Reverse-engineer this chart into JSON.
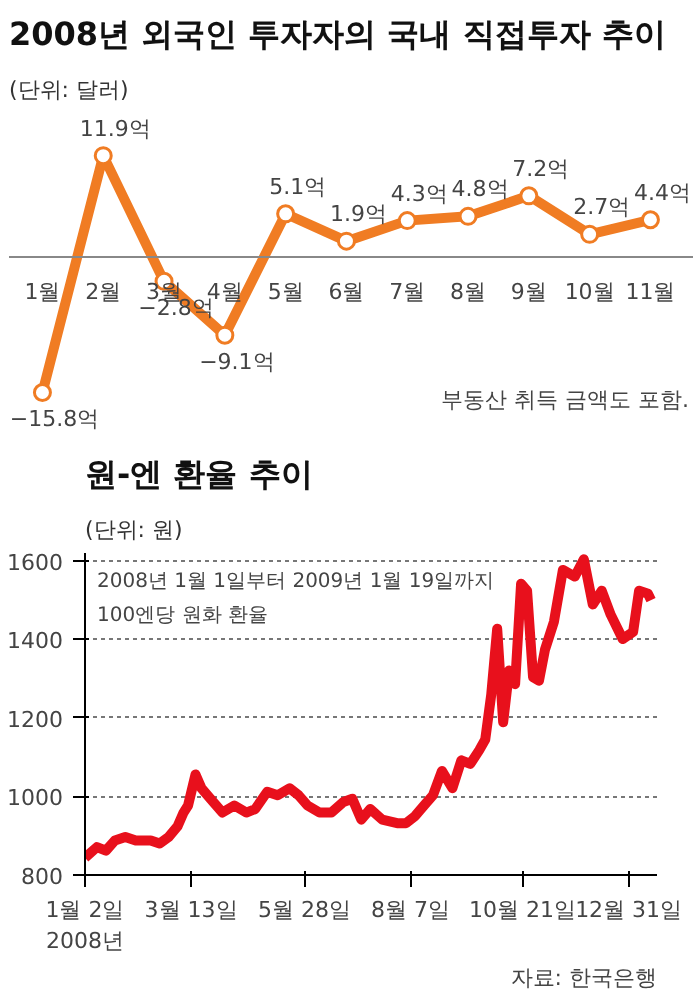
{
  "chart_data": [
    {
      "type": "line",
      "title": "2008년 외국인 투자자의 국내 직접투자 추이",
      "subtitle": "(단위: 달러)",
      "categories": [
        "1월",
        "2월",
        "3월",
        "4월",
        "5월",
        "6월",
        "7월",
        "8월",
        "9월",
        "10월",
        "11월"
      ],
      "values": [
        -15.8,
        11.9,
        -2.8,
        -9.1,
        5.1,
        1.9,
        4.3,
        4.8,
        7.2,
        2.7,
        4.4
      ],
      "value_labels": [
        "−15.8억",
        "11.9억",
        "−2.8억",
        "−9.1억",
        "5.1억",
        "1.9억",
        "4.3억",
        "4.8억",
        "7.2억",
        "2.7억",
        "4.4억"
      ],
      "color": "#f07c23",
      "marker": "circle",
      "line_style": "solid",
      "tick_labels": "x",
      "grid": false,
      "annotations": [
        "부동산 취득 금액도 포함."
      ]
    },
    {
      "type": "line",
      "title": "원-엔 환율 추이",
      "subtitle": "(단위: 원)",
      "color": "#e8101c",
      "line_style": "solid",
      "grid": "y",
      "x": [
        "2008-01-02",
        "2008-01-10",
        "2008-01-16",
        "2008-01-22",
        "2008-01-29",
        "2008-02-05",
        "2008-02-15",
        "2008-02-21",
        "2008-02-27",
        "2008-03-04",
        "2008-03-08",
        "2008-03-11",
        "2008-03-16",
        "2008-03-20",
        "2008-03-26",
        "2008-04-03",
        "2008-04-11",
        "2008-04-19",
        "2008-04-25",
        "2008-05-03",
        "2008-05-10",
        "2008-05-18",
        "2008-05-24",
        "2008-05-30",
        "2008-06-07",
        "2008-06-15",
        "2008-06-23",
        "2008-06-29",
        "2008-07-05",
        "2008-07-11",
        "2008-07-19",
        "2008-07-29",
        "2008-08-04",
        "2008-08-10",
        "2008-08-16",
        "2008-08-22",
        "2008-08-28",
        "2008-09-04",
        "2008-09-10",
        "2008-09-16",
        "2008-09-22",
        "2008-09-26",
        "2008-09-30",
        "2008-10-04",
        "2008-10-08",
        "2008-10-12",
        "2008-10-16",
        "2008-10-20",
        "2008-10-24",
        "2008-10-28",
        "2008-11-01",
        "2008-11-05",
        "2008-11-11",
        "2008-11-17",
        "2008-11-25",
        "2008-12-01",
        "2008-12-07",
        "2008-12-13",
        "2008-12-19",
        "2008-12-27",
        "2009-01-03",
        "2009-01-07",
        "2009-01-13",
        "2009-01-15"
      ],
      "values": [
        844,
        871,
        862,
        888,
        897,
        888,
        888,
        880,
        897,
        924,
        959,
        977,
        1056,
        1021,
        994,
        959,
        977,
        959,
        968,
        1012,
        1003,
        1021,
        1003,
        977,
        959,
        959,
        986,
        994,
        941,
        968,
        941,
        932,
        932,
        950,
        977,
        1003,
        1065,
        1021,
        1092,
        1083,
        1118,
        1145,
        1259,
        1427,
        1189,
        1321,
        1286,
        1542,
        1524,
        1304,
        1295,
        1374,
        1445,
        1577,
        1560,
        1604,
        1489,
        1524,
        1463,
        1401,
        1419,
        1524,
        1516,
        1500
      ],
      "xlim": [
        "2008-01-02",
        "2009-01-19"
      ],
      "xticks": [
        {
          "value": "2008-01-02",
          "label": "1월 2일\n2008년"
        },
        {
          "value": "2008-03-13",
          "label": "3월 13일"
        },
        {
          "value": "2008-05-28",
          "label": "5월 28일"
        },
        {
          "value": "2008-08-07",
          "label": "8월 7일"
        },
        {
          "value": "2008-10-21",
          "label": "10월 21일"
        },
        {
          "value": "2008-12-31",
          "label": "12월 31일"
        }
      ],
      "ylim": [
        800,
        1620
      ],
      "yticks": [
        800,
        1000,
        1200,
        1400,
        1600
      ],
      "annotations": [
        "2008년 1월 1일부터 2009년 1월 19일까지",
        "100엔당 원화 환율",
        "자료: 한국은행"
      ]
    }
  ]
}
